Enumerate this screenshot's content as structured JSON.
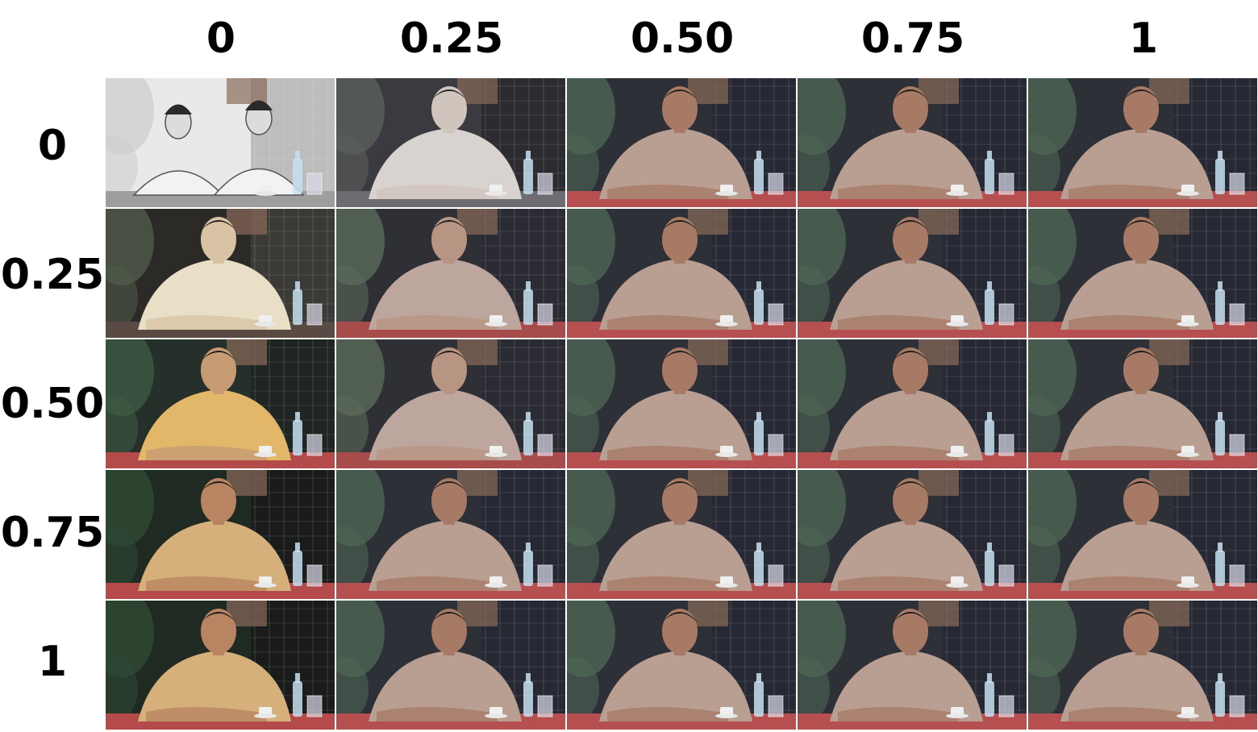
{
  "column_labels": [
    "0",
    "0.25",
    "0.50",
    "0.75",
    "1"
  ],
  "row_labels": [
    "0",
    "0.25",
    "0.50",
    "0.75",
    "1"
  ],
  "cells": [
    [
      {
        "style": "sketch"
      },
      {
        "style": "sketch-tint"
      },
      {
        "style": "photo"
      },
      {
        "style": "photo"
      },
      {
        "style": "photo"
      }
    ],
    [
      {
        "style": "anime"
      },
      {
        "style": "illustration"
      },
      {
        "style": "photo"
      },
      {
        "style": "photo"
      },
      {
        "style": "photo"
      }
    ],
    [
      {
        "style": "anime-warm"
      },
      {
        "style": "illustration"
      },
      {
        "style": "photo"
      },
      {
        "style": "photo"
      },
      {
        "style": "photo"
      }
    ],
    [
      {
        "style": "painted-warm"
      },
      {
        "style": "photo"
      },
      {
        "style": "photo"
      },
      {
        "style": "photo"
      },
      {
        "style": "photo"
      }
    ],
    [
      {
        "style": "painted-warm"
      },
      {
        "style": "photo"
      },
      {
        "style": "photo"
      },
      {
        "style": "photo"
      },
      {
        "style": "photo"
      }
    ]
  ],
  "palette": {
    "sketch": {
      "bg": "#e9e9e9",
      "wall": "#bdbdbd",
      "shirt": "#f2f2f2",
      "skin": "#dcdcdc",
      "hair": "#2a2a2a",
      "table": "#9e9e9e",
      "leaf": "#cfcfcf"
    },
    "sketch-tint": {
      "bg": "#3a3a40",
      "wall": "#2b2b30",
      "shirt": "#d9d3cf",
      "skin": "#cfc5bd",
      "hair": "#222222",
      "table": "#6d6c72",
      "leaf": "#5a5f5a"
    },
    "anime": {
      "bg": "#2c2a26",
      "wall": "#3b3a36",
      "shirt": "#e9dfc6",
      "skin": "#d9c3a5",
      "hair": "#1e1e1e",
      "table": "#5a4a44",
      "leaf": "#4f5a4a"
    },
    "illustration": {
      "bg": "#2f2f36",
      "wall": "#2a2b33",
      "shirt": "#bca69d",
      "skin": "#b89583",
      "hair": "#1c1c1c",
      "table": "#a84b4b",
      "leaf": "#5a6a5a"
    },
    "anime-warm": {
      "bg": "#26302a",
      "wall": "#1f2522",
      "shirt": "#e2b76a",
      "skin": "#c79b73",
      "hair": "#1a1a1a",
      "table": "#b44b4b",
      "leaf": "#3d5a44"
    },
    "painted-warm": {
      "bg": "#1f2a22",
      "wall": "#191c1a",
      "shirt": "#d6b07a",
      "skin": "#b98462",
      "hair": "#161616",
      "table": "#b54a4a",
      "leaf": "#2f4a35"
    },
    "photo": {
      "bg": "#2e3038",
      "wall": "#262833",
      "shirt": "#b89f92",
      "skin": "#a77a66",
      "hair": "#1a1a1a",
      "table": "#b64f4f",
      "leaf": "#4d6554"
    }
  }
}
